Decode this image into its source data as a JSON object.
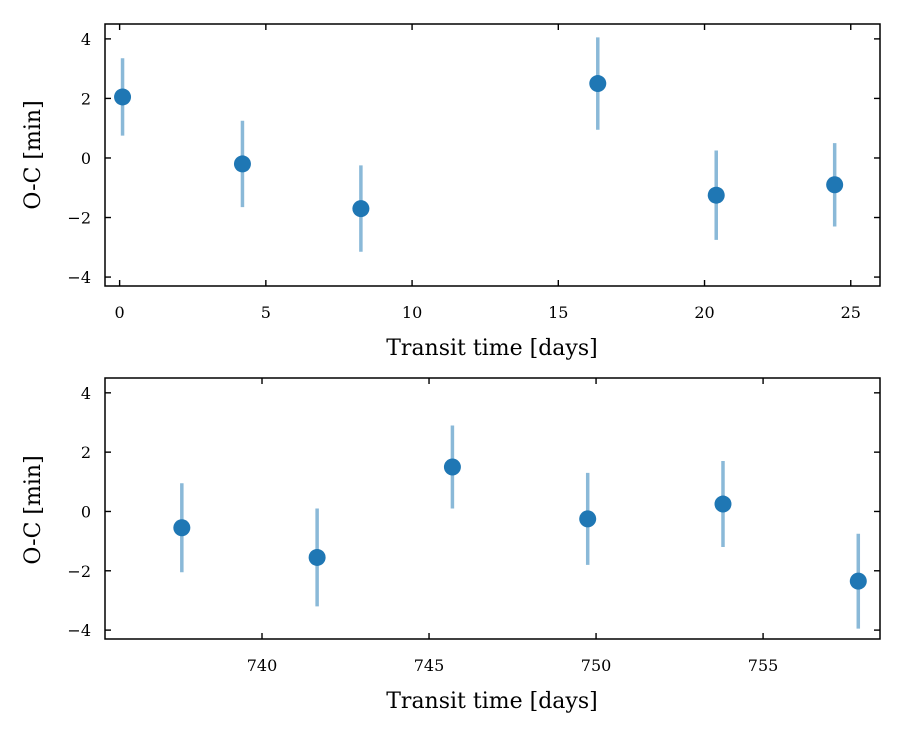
{
  "colors": {
    "point": "#1f77b4",
    "errorbar": "#8ab9d8",
    "axis": "#000000"
  },
  "chart_data": [
    {
      "type": "scatter",
      "xlabel": "Transit time [days]",
      "ylabel": "O-C [min]",
      "xlim": [
        -0.5,
        26.0
      ],
      "ylim": [
        -4.3,
        4.5
      ],
      "xticks": [
        0,
        5,
        10,
        15,
        20,
        25
      ],
      "xtick_labels": [
        "0",
        "5",
        "10",
        "15",
        "20",
        "25"
      ],
      "yticks": [
        -4,
        -2,
        0,
        2,
        4
      ],
      "ytick_labels": [
        "−4",
        "−2",
        "0",
        "2",
        "4"
      ],
      "grid": false,
      "points": [
        {
          "x": 0.1,
          "y": 2.05,
          "err": 1.3
        },
        {
          "x": 4.2,
          "y": -0.2,
          "err": 1.45
        },
        {
          "x": 8.25,
          "y": -1.7,
          "err": 1.45
        },
        {
          "x": 16.35,
          "y": 2.5,
          "err": 1.55
        },
        {
          "x": 20.4,
          "y": -1.25,
          "err": 1.5
        },
        {
          "x": 24.45,
          "y": -0.9,
          "err": 1.4
        }
      ]
    },
    {
      "type": "scatter",
      "xlabel": "Transit time [days]",
      "ylabel": "O-C [min]",
      "xlim": [
        735.3,
        758.5
      ],
      "ylim": [
        -4.3,
        4.5
      ],
      "xticks": [
        740,
        745,
        750,
        755
      ],
      "xtick_labels": [
        "740",
        "745",
        "750",
        "755"
      ],
      "yticks": [
        -4,
        -2,
        0,
        2,
        4
      ],
      "ytick_labels": [
        "−4",
        "−2",
        "0",
        "2",
        "4"
      ],
      "grid": false,
      "points": [
        {
          "x": 737.6,
          "y": -0.55,
          "err": 1.5
        },
        {
          "x": 741.65,
          "y": -1.55,
          "err": 1.65
        },
        {
          "x": 745.7,
          "y": 1.5,
          "err": 1.4
        },
        {
          "x": 749.75,
          "y": -0.25,
          "err": 1.55
        },
        {
          "x": 753.8,
          "y": 0.25,
          "err": 1.45
        },
        {
          "x": 757.85,
          "y": -2.35,
          "err": 1.6
        }
      ]
    }
  ]
}
